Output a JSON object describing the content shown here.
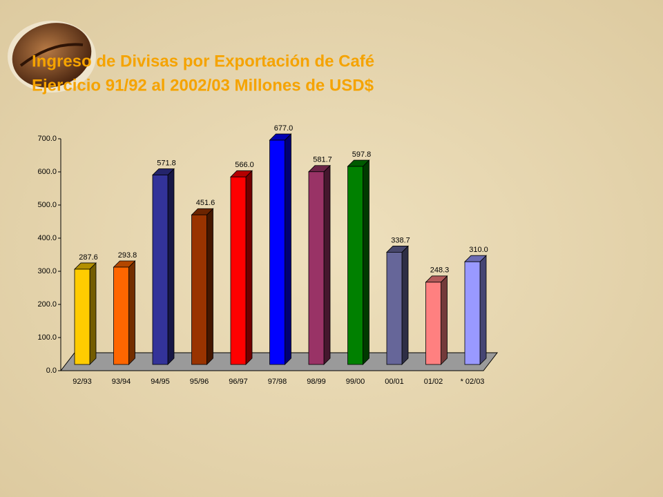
{
  "chart_data": {
    "type": "bar3d",
    "title": "Ingreso de Divisas por  Exportación de Café",
    "subtitle": "Ejercicio 91/92 al 2002/03 Millones de USD$",
    "categories": [
      "92/93",
      "93/94",
      "94/95",
      "95/96",
      "96/97",
      "97/98",
      "98/99",
      "99/00",
      "00/01",
      "01/02",
      "* 02/03"
    ],
    "values": [
      287.6,
      293.8,
      571.8,
      451.6,
      566.0,
      677.0,
      581.7,
      597.8,
      338.7,
      248.3,
      310.0
    ],
    "value_labels": [
      "287.6",
      "293.8",
      "571.8",
      "451.6",
      "566.0",
      "677.0",
      "581.7",
      "597.8",
      "338.7",
      "248.3",
      "310.0"
    ],
    "colors": [
      "#ffcc00",
      "#ff6600",
      "#333399",
      "#993300",
      "#ff0000",
      "#0000ff",
      "#993366",
      "#008000",
      "#666699",
      "#ff8080",
      "#9999ff"
    ],
    "ylim": [
      0,
      700
    ],
    "yticks": [
      {
        "value": 0,
        "label": "0.0"
      },
      {
        "value": 100,
        "label": "100.0"
      },
      {
        "value": 200,
        "label": "200.0"
      },
      {
        "value": 300,
        "label": "300.0"
      },
      {
        "value": 400,
        "label": "400.0"
      },
      {
        "value": 500,
        "label": "500.0"
      },
      {
        "value": 600,
        "label": "600.0"
      },
      {
        "value": 700,
        "label": "700.0"
      }
    ],
    "grid": false
  }
}
